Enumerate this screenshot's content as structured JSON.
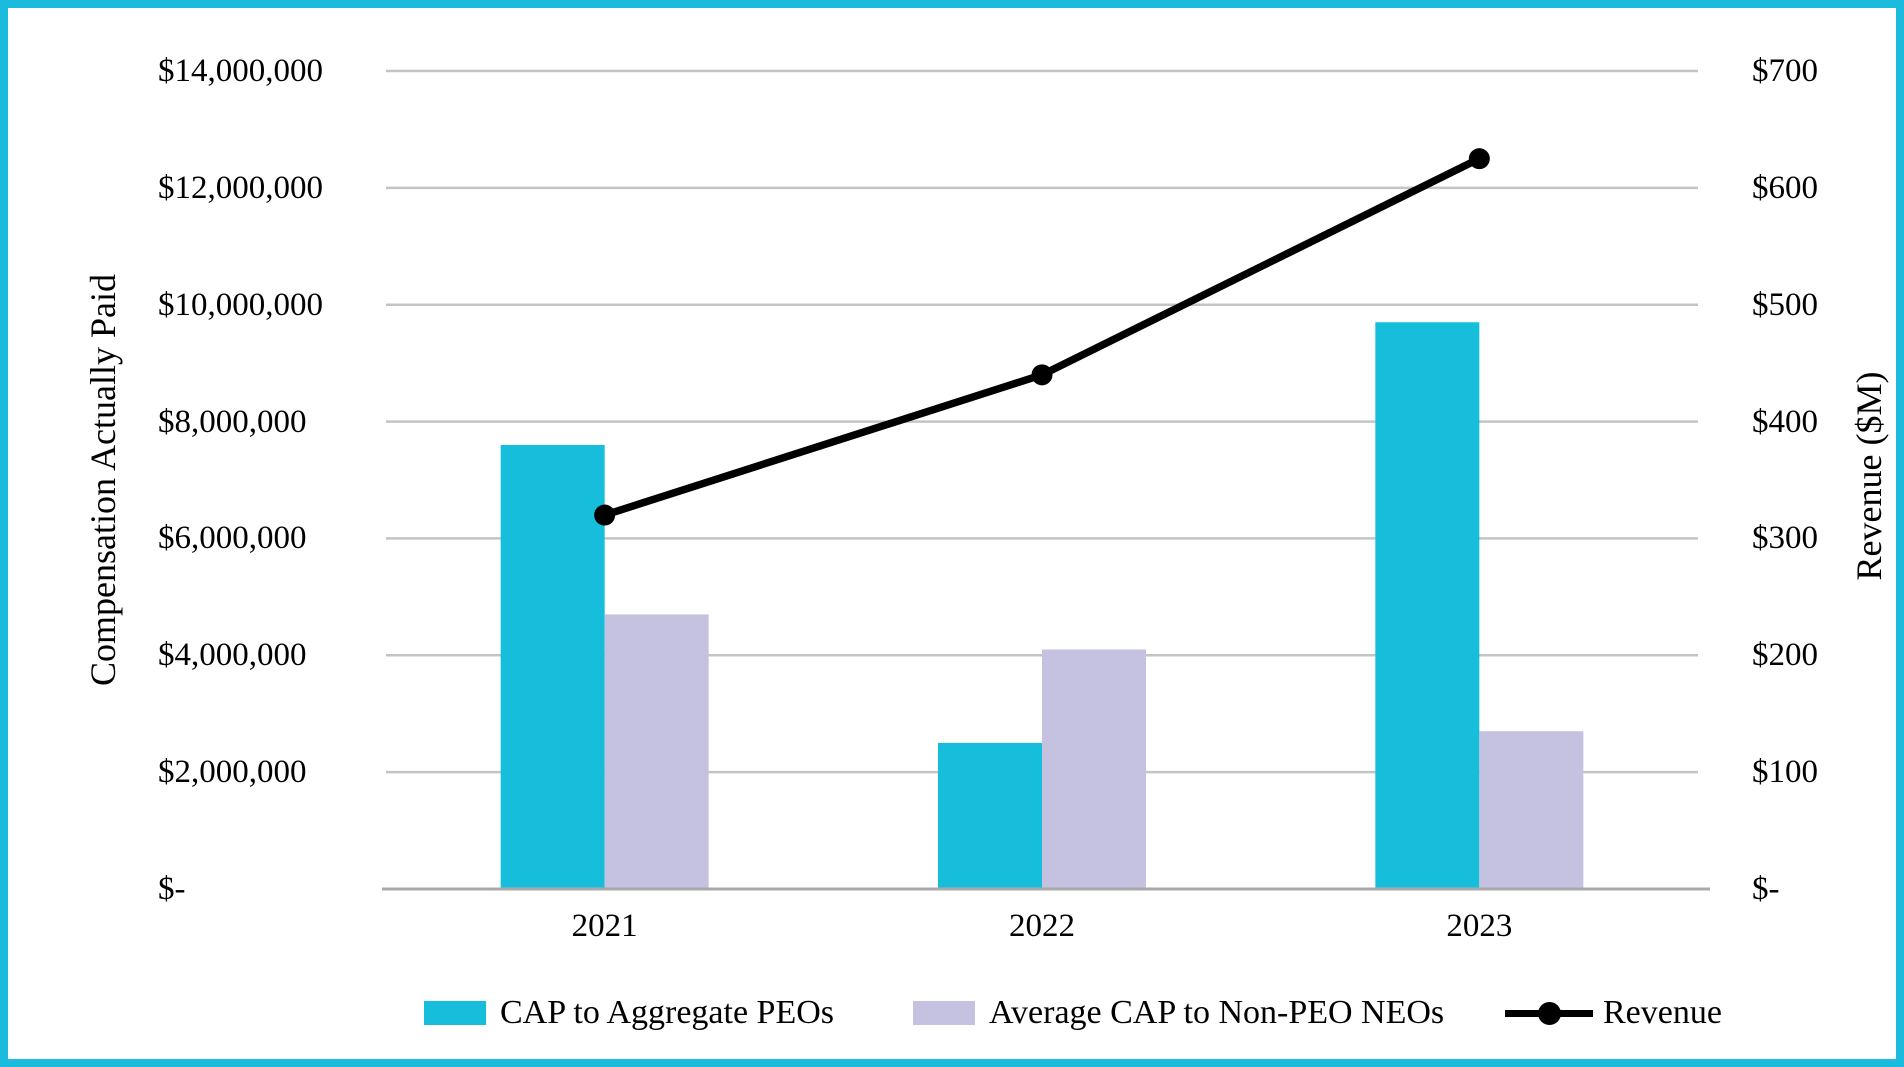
{
  "frame": {
    "border_color": "#1ABBDC",
    "background": "#FFFFFF"
  },
  "chart_data": {
    "type": "combo-bar-line",
    "title": "",
    "categories": [
      "2021",
      "2022",
      "2023"
    ],
    "series": [
      {
        "name": "CAP to Aggregate PEOs",
        "type": "bar",
        "axis": "left",
        "color": "#16BEDC",
        "values": [
          7600000,
          2500000,
          9700000
        ]
      },
      {
        "name": "Average CAP to Non-PEO NEOs",
        "type": "bar",
        "axis": "left",
        "color": "#C4C2E0",
        "values": [
          4700000,
          4100000,
          2700000
        ]
      },
      {
        "name": "Revenue",
        "type": "line",
        "axis": "right",
        "color": "#000000",
        "marker": "circle",
        "values": [
          320,
          440,
          625
        ]
      }
    ],
    "left_axis": {
      "title": "Compensation Actually Paid",
      "min": 0,
      "max": 14000000,
      "tick_step": 2000000,
      "tick_labels": [
        "$-",
        "$2,000,000",
        "$4,000,000",
        "$6,000,000",
        "$8,000,000",
        "$10,000,000",
        "$12,000,000",
        "$14,000,000"
      ]
    },
    "right_axis": {
      "title": "Revenue ($M)",
      "min": 0,
      "max": 700,
      "tick_step": 100,
      "tick_labels": [
        "$-",
        "$100",
        "$200",
        "$300",
        "$400",
        "$500",
        "$600",
        "$700"
      ]
    },
    "grid": true,
    "gridline_color": "#C4C4C4",
    "axis_line_color": "#A9A9A9",
    "legend_position": "bottom"
  }
}
